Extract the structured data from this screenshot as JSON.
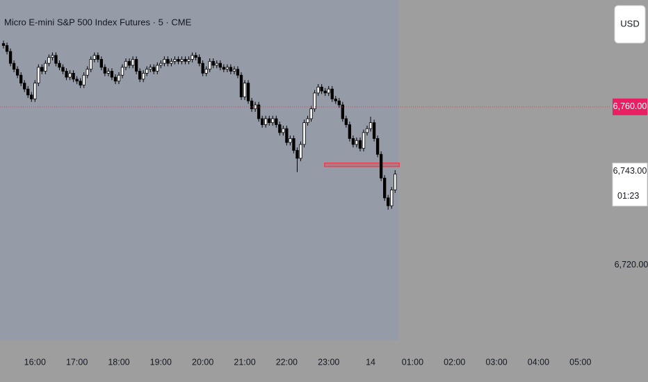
{
  "chart_data": {
    "type": "candlestick",
    "title": "Micro E-mini S&P 500 Index Futures · 5 · CME",
    "currency": "USD",
    "x": [
      915,
      920,
      925,
      930,
      935,
      940,
      945,
      950,
      955,
      960,
      965,
      970,
      975,
      980,
      985,
      990,
      995,
      1000,
      1005,
      1010,
      1015,
      1020,
      1025,
      1030,
      1035,
      1040,
      1045,
      1050,
      1055,
      1060,
      1065,
      1070,
      1075,
      1080,
      1085,
      1090,
      1095,
      1100,
      1105,
      1110,
      1115,
      1120,
      1125,
      1130,
      1135,
      1140,
      1145,
      1150,
      1155,
      1160,
      1165,
      1170,
      1175,
      1180,
      1185,
      1190,
      1195,
      1200,
      1205,
      1210,
      1215,
      1220,
      1225,
      1230,
      1235,
      1240,
      1245,
      1250,
      1255,
      1260,
      1265,
      1270,
      1275,
      1280,
      1285,
      1290,
      1295,
      1300,
      1305,
      1310,
      1315,
      1320,
      1325,
      1330,
      1335,
      1340,
      1345,
      1350,
      1355,
      1360,
      1365,
      1370,
      1375,
      1380,
      1385,
      1390,
      1395,
      1400,
      1405,
      1410,
      1415,
      1420,
      1425,
      1430,
      1435,
      1440,
      1445,
      1450,
      1455,
      1460,
      1465,
      1470,
      1475
    ],
    "open": [
      6776,
      6775.5,
      6774,
      6771,
      6769.5,
      6768,
      6766,
      6764.5,
      6763,
      6762,
      6766,
      6770,
      6769,
      6771,
      6772.5,
      6773,
      6771,
      6770,
      6769,
      6767.5,
      6768.5,
      6767,
      6766.5,
      6765.5,
      6768,
      6769.5,
      6772,
      6773,
      6772,
      6770,
      6768.5,
      6769,
      6767.5,
      6766.5,
      6768,
      6770,
      6771.5,
      6770.5,
      6772,
      6769,
      6767,
      6768.5,
      6769.5,
      6770,
      6769,
      6770.5,
      6771,
      6772,
      6771,
      6771.5,
      6772,
      6771.5,
      6772,
      6771.5,
      6772,
      6773,
      6772.5,
      6771,
      6768.5,
      6769.5,
      6771.5,
      6770.5,
      6771,
      6770,
      6769.5,
      6770,
      6769,
      6769.5,
      6768,
      6762.5,
      6766,
      6761.5,
      6759.5,
      6760.5,
      6757,
      6755.5,
      6757,
      6756,
      6757,
      6755.5,
      6753.5,
      6754.5,
      6751,
      6752,
      6749,
      6747,
      6750.5,
      6756,
      6757,
      6759.5,
      6763.5,
      6765,
      6764,
      6763.5,
      6764.5,
      6762,
      6761.5,
      6760.5,
      6757,
      6755.5,
      6752,
      6750.5,
      6751.5,
      6749.5,
      6753.5,
      6754.5,
      6756,
      6752,
      6748,
      6742,
      6737,
      6735,
      6739
    ],
    "high": [
      6776.75,
      6776.25,
      6774.75,
      6771.75,
      6770.25,
      6768.75,
      6766.75,
      6765.25,
      6763.75,
      6766.75,
      6770.75,
      6770.75,
      6771.75,
      6773.25,
      6773.75,
      6773.75,
      6771.75,
      6770.75,
      6769.75,
      6769.25,
      6769.25,
      6767.75,
      6767.25,
      6768.75,
      6770.25,
      6772.75,
      6773.75,
      6773.75,
      6772.75,
      6770.75,
      6769.75,
      6769.75,
      6768.25,
      6768.75,
      6770.75,
      6772.25,
      6772.25,
      6772.75,
      6772.75,
      6769.75,
      6769.25,
      6770.25,
      6770.75,
      6770.75,
      6771.25,
      6771.75,
      6772.75,
      6772.75,
      6772.25,
      6772.75,
      6772.75,
      6772.75,
      6772.75,
      6772.75,
      6773.75,
      6773.75,
      6773.25,
      6771.75,
      6770.25,
      6772.25,
      6772.25,
      6771.75,
      6771.75,
      6770.75,
      6770.75,
      6770.75,
      6770.25,
      6770.25,
      6768.75,
      6766.75,
      6766.75,
      6762.25,
      6761.25,
      6761.25,
      6757.75,
      6757.75,
      6757.75,
      6757.75,
      6757.75,
      6756.25,
      6755.25,
      6755.25,
      6752.75,
      6752.75,
      6749.75,
      6751.25,
      6756.75,
      6757.75,
      6760.25,
      6764.25,
      6765.75,
      6765.75,
      6764.75,
      6765.25,
      6765.25,
      6762.75,
      6762.25,
      6761.25,
      6757.75,
      6756.25,
      6752.75,
      6752.25,
      6752.25,
      6754.25,
      6755.25,
      6757.5,
      6756.75,
      6752.75,
      6748.75,
      6742.75,
      6737.75,
      6739.75,
      6744
    ],
    "low": [
      6774.75,
      6773.25,
      6770.25,
      6768.75,
      6767.25,
      6765.25,
      6763.75,
      6762.25,
      6761.25,
      6761.25,
      6765.25,
      6768.25,
      6768.25,
      6770.25,
      6771.75,
      6770.25,
      6769.25,
      6768.25,
      6766.75,
      6766.75,
      6766.25,
      6765.75,
      6764.75,
      6764.75,
      6767.25,
      6768.75,
      6771.25,
      6771.25,
      6769.25,
      6767.75,
      6767.75,
      6766.75,
      6765.75,
      6765.75,
      6767.25,
      6769.25,
      6769.75,
      6769.75,
      6768.25,
      6766.25,
      6766.25,
      6767.75,
      6768.75,
      6768.25,
      6768.25,
      6769.75,
      6770.25,
      6770.25,
      6770.25,
      6770.75,
      6770.75,
      6770.75,
      6770.75,
      6770.75,
      6771.25,
      6771.75,
      6770.25,
      6767.75,
      6767.75,
      6768.75,
      6769.75,
      6769.75,
      6769.25,
      6768.75,
      6768.75,
      6768.25,
      6768.25,
      6767.25,
      6761.75,
      6761.75,
      6760.75,
      6758.75,
      6758.75,
      6756.25,
      6754.75,
      6754.75,
      6755.25,
      6755.25,
      6754.75,
      6752.75,
      6752.75,
      6750.25,
      6750.25,
      6748.25,
      6743.5,
      6746.25,
      6749.75,
      6755.25,
      6756.25,
      6758.75,
      6762.75,
      6763.25,
      6762.75,
      6762.75,
      6761.25,
      6760.75,
      6759.75,
      6756.25,
      6754.75,
      6751.25,
      6749.75,
      6749.75,
      6748.75,
      6748.75,
      6752.75,
      6753.75,
      6751.25,
      6747.25,
      6741.25,
      6736.25,
      6734,
      6734.25,
      6738.25
    ],
    "close": [
      6775.5,
      6774,
      6771,
      6769.5,
      6768,
      6766,
      6764.5,
      6763,
      6762,
      6766,
      6770,
      6769,
      6771,
      6772.5,
      6773,
      6771,
      6770,
      6769,
      6767.5,
      6768.5,
      6767,
      6766.5,
      6765.5,
      6768,
      6769.5,
      6772,
      6773,
      6772,
      6770,
      6768.5,
      6769,
      6767.5,
      6766.5,
      6768,
      6770,
      6771.5,
      6770.5,
      6772,
      6769,
      6767,
      6768.5,
      6769.5,
      6770,
      6769,
      6770.5,
      6771,
      6772,
      6771,
      6771.5,
      6772,
      6771.5,
      6772,
      6771.5,
      6772,
      6773,
      6772.5,
      6771,
      6768.5,
      6769.5,
      6771.5,
      6770.5,
      6771,
      6770,
      6769.5,
      6770,
      6769,
      6769.5,
      6768,
      6762.5,
      6766,
      6761.5,
      6759.5,
      6760.5,
      6757,
      6755.5,
      6757,
      6756,
      6757,
      6755.5,
      6753.5,
      6754.5,
      6751,
      6752,
      6749,
      6747,
      6750.5,
      6756,
      6757,
      6759.5,
      6763.5,
      6765,
      6764,
      6763.5,
      6764.5,
      6762,
      6761.5,
      6760.5,
      6757,
      6755.5,
      6752,
      6750.5,
      6751.5,
      6749.5,
      6753.5,
      6754.5,
      6756,
      6752,
      6748,
      6742,
      6737,
      6735,
      6739,
      6743
    ],
    "up_color": "#ffffff",
    "down_color": "#000000",
    "xlim": [
      910,
      1777
    ],
    "xticks": [
      {
        "value": 960,
        "label": "16:00"
      },
      {
        "value": 1020,
        "label": "17:00"
      },
      {
        "value": 1080,
        "label": "18:00"
      },
      {
        "value": 1140,
        "label": "19:00"
      },
      {
        "value": 1200,
        "label": "20:00"
      },
      {
        "value": 1260,
        "label": "21:00"
      },
      {
        "value": 1320,
        "label": "22:00"
      },
      {
        "value": 1380,
        "label": "23:00"
      },
      {
        "value": 1440,
        "label": "14"
      },
      {
        "value": 1500,
        "label": "01:00"
      },
      {
        "value": 1560,
        "label": "02:00"
      },
      {
        "value": 1620,
        "label": "03:00"
      },
      {
        "value": 1680,
        "label": "04:00"
      },
      {
        "value": 1740,
        "label": "05:00"
      }
    ],
    "ylim": [
      6701,
      6787
    ],
    "yticks": [
      {
        "value": 6720,
        "label": "6,720.00"
      }
    ],
    "price_line": {
      "value": 6760,
      "label": "6,760.00",
      "color": "#f23645"
    },
    "last_price": {
      "value": 6743,
      "label": "6,743.00",
      "countdown": "01:23"
    },
    "zone": {
      "x": [
        1374,
        1481
      ],
      "y": [
        6744.9,
        6745.8
      ],
      "color": "#f23645"
    }
  }
}
